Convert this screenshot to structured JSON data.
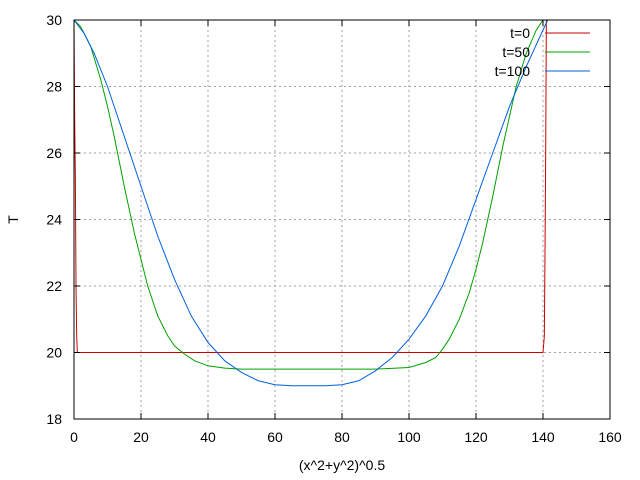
{
  "chart_data": {
    "type": "line",
    "title": "",
    "xlabel": "(x^2+y^2)^0.5",
    "ylabel": "T",
    "xlim": [
      0,
      160
    ],
    "ylim": [
      18,
      30
    ],
    "xticks": [
      0,
      20,
      40,
      60,
      80,
      100,
      120,
      140,
      160
    ],
    "yticks": [
      18,
      20,
      22,
      24,
      26,
      28,
      30
    ],
    "grid": true,
    "legend_position": "top-right",
    "series": [
      {
        "name": "t=0",
        "color": "#cc0000",
        "x": [
          0,
          0.2,
          0.4,
          0.6,
          0.8,
          1,
          2,
          10,
          40,
          80,
          120,
          139,
          140,
          140.4,
          140.6,
          140.8,
          141,
          141.2
        ],
        "y": [
          30,
          27,
          25.3,
          22,
          20.5,
          20,
          20,
          20,
          20,
          20,
          20,
          20,
          20,
          20.5,
          23,
          26,
          30,
          30
        ]
      },
      {
        "name": "t=50",
        "color": "#00a000",
        "x": [
          0,
          2,
          5,
          8,
          10,
          12,
          15,
          18,
          20,
          22,
          25,
          28,
          30,
          33,
          36,
          40,
          45,
          50,
          60,
          70,
          80,
          90,
          100,
          105,
          108,
          110,
          112,
          115,
          118,
          120,
          122,
          125,
          128,
          130,
          132,
          135,
          138,
          140,
          141.4
        ],
        "y": [
          30,
          29.8,
          29.2,
          28.2,
          27.4,
          26.5,
          25,
          23.6,
          22.8,
          22,
          21.1,
          20.5,
          20.2,
          19.95,
          19.75,
          19.6,
          19.53,
          19.5,
          19.5,
          19.5,
          19.5,
          19.5,
          19.55,
          19.7,
          19.85,
          20.1,
          20.4,
          21,
          21.8,
          22.5,
          23.3,
          24.7,
          26.2,
          27.1,
          28,
          29,
          29.7,
          30,
          30
        ]
      },
      {
        "name": "t=100",
        "color": "#0060e0",
        "x": [
          0,
          3,
          6,
          10,
          15,
          20,
          25,
          30,
          35,
          40,
          45,
          50,
          55,
          60,
          65,
          70,
          75,
          80,
          85,
          90,
          95,
          100,
          105,
          110,
          115,
          120,
          125,
          130,
          135,
          140,
          141.4
        ],
        "y": [
          30,
          29.6,
          29,
          28,
          26.5,
          25,
          23.5,
          22.2,
          21.1,
          20.3,
          19.75,
          19.4,
          19.15,
          19.03,
          19,
          19,
          19,
          19.03,
          19.15,
          19.45,
          19.85,
          20.4,
          21.1,
          22,
          23.2,
          24.6,
          26,
          27.4,
          28.6,
          29.7,
          30
        ]
      }
    ]
  }
}
